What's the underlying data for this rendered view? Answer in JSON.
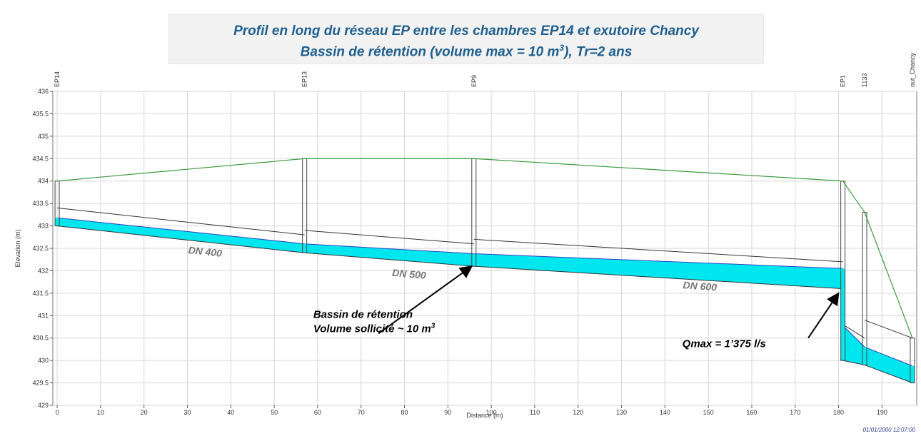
{
  "title": {
    "line1": "Profil en long du réseau EP entre les chambres EP14 et exutoire Chancy",
    "line2_prefix": "Bassin de rétention (volume max = 10 m",
    "line2_sup": "3",
    "line2_suffix": "), Tr=2 ans"
  },
  "timestamp": "01/01/2000 12:07:00",
  "chart_data": {
    "type": "line",
    "xlabel": "Distance (m)",
    "ylabel": "Elevation (m)",
    "xlim": [
      -1,
      198
    ],
    "ylim": [
      429,
      436
    ],
    "x_ticks": [
      0,
      10,
      20,
      30,
      40,
      50,
      60,
      70,
      80,
      90,
      100,
      110,
      120,
      130,
      140,
      150,
      160,
      170,
      180,
      190
    ],
    "y_ticks": [
      429,
      429.5,
      430,
      430.5,
      431,
      431.5,
      432,
      432.5,
      433,
      433.5,
      434,
      434.5,
      435,
      435.5,
      436
    ],
    "grid": true,
    "colors": {
      "ground": "#3c9a3c",
      "pipe": "#333333",
      "water_fill": "#00e6ee",
      "water_line": "#3040c8",
      "node": "#444444"
    },
    "nodes": [
      {
        "name": "EP14",
        "x": 0,
        "invert": 433.0,
        "ground": 434.0
      },
      {
        "name": "EP13",
        "x": 57,
        "invert": 432.4,
        "ground": 434.5
      },
      {
        "name": "EP9",
        "x": 96,
        "invert": 432.1,
        "ground": 434.5
      },
      {
        "name": "EP1",
        "x": 181,
        "invert": 430.0,
        "ground": 434.0
      },
      {
        "name": "1133",
        "x": 186,
        "invert": 429.9,
        "ground": 433.3
      },
      {
        "name": "out_Chancy",
        "x": 197,
        "invert": 429.5,
        "ground": 430.5
      }
    ],
    "conduits": [
      {
        "from": "EP14",
        "to": "EP13",
        "x0": 0,
        "x1": 57,
        "inv0": 433.0,
        "inv1": 432.4,
        "crown0": 433.4,
        "crown1": 432.8,
        "water0": 433.18,
        "water1": 432.6
      },
      {
        "from": "EP13",
        "to": "EP9",
        "x0": 57,
        "x1": 96,
        "inv0": 432.4,
        "inv1": 432.1,
        "crown0": 432.9,
        "crown1": 432.6,
        "water0": 432.6,
        "water1": 432.38
      },
      {
        "from": "EP9",
        "to": "EP1",
        "x0": 96,
        "x1": 181,
        "inv0": 432.1,
        "inv1": 431.6,
        "crown0": 432.7,
        "crown1": 432.2,
        "water0": 432.38,
        "water1": 432.05
      },
      {
        "from": "EP1",
        "to": "1133",
        "x0": 181,
        "x1": 186,
        "inv0": 430.0,
        "inv1": 429.9,
        "crown0": 430.8,
        "crown1": 430.5,
        "water0": 430.78,
        "water1": 430.3
      },
      {
        "from": "1133",
        "to": "out_Chancy",
        "x0": 186,
        "x1": 197,
        "inv0": 429.9,
        "inv1": 429.5,
        "crown0": 430.9,
        "crown1": 430.5,
        "water0": 430.3,
        "water1": 429.88
      }
    ],
    "node_water": [
      {
        "x": 0,
        "level": 433.18
      },
      {
        "x": 57,
        "level": 432.6
      },
      {
        "x": 96,
        "level": 432.38
      },
      {
        "x": 181,
        "level": 432.05
      },
      {
        "x": 186,
        "level": 430.3
      },
      {
        "x": 197,
        "level": 429.88
      }
    ],
    "labels": [
      {
        "text": "DN 400",
        "x": 34,
        "y": 432.35,
        "angle": 6
      },
      {
        "text": "DN 500",
        "x": 81,
        "y": 431.85,
        "angle": 5
      },
      {
        "text": "DN 600",
        "x": 148,
        "y": 431.58,
        "angle": 4
      }
    ],
    "annotations": [
      {
        "id": "bassin",
        "line1": "Bassin de rétention",
        "line2_prefix": "Volume sollicité ~ 10 m",
        "line2_sup": "3",
        "text_x": 59,
        "text_y": 430.95,
        "arrow_from": [
          74,
          430.6
        ],
        "arrow_to": [
          95.5,
          432.1
        ]
      },
      {
        "id": "qmax",
        "text": "Qmax = 1’375 l/s",
        "text_x": 144,
        "text_y": 430.3,
        "arrow_from": [
          173,
          430.5
        ],
        "arrow_to": [
          180,
          431.5
        ]
      }
    ]
  }
}
